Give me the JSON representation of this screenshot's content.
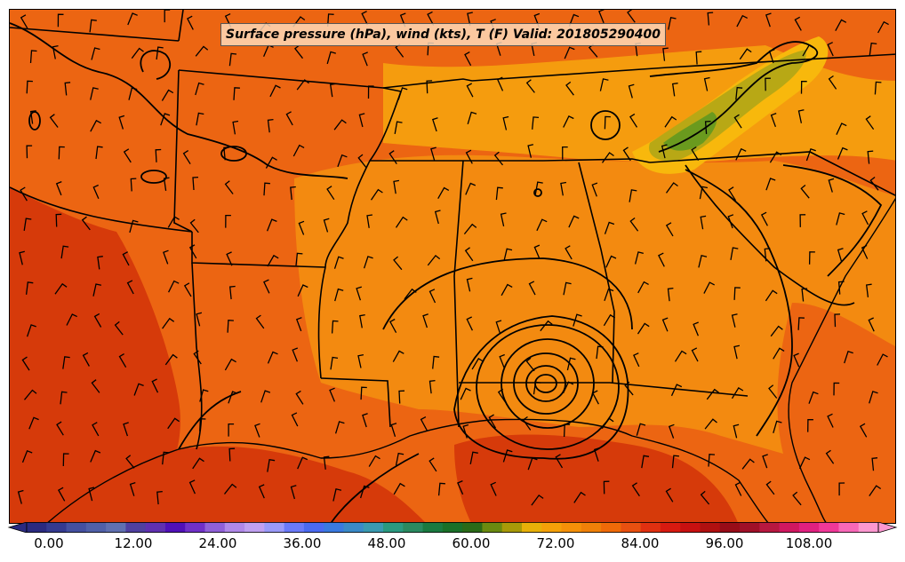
{
  "map": {
    "title": "Surface pressure (hPa), wind (kts), T (F) Valid: 201805290400",
    "fill_colors": {
      "deep": "#d63a0a",
      "base": "#ec6512",
      "mid": "#f38a10",
      "warm": "#f59c0e",
      "high": "#f8b80c",
      "cool": "#b8a815",
      "green": "#6a9a1e"
    },
    "line_color": "#000000"
  },
  "colorbar": {
    "tick_labels": [
      "0.00",
      "12.00",
      "24.00",
      "36.00",
      "48.00",
      "60.00",
      "72.00",
      "84.00",
      "96.00",
      "108.00"
    ],
    "tick_values": [
      0,
      12,
      24,
      36,
      48,
      60,
      72,
      84,
      96,
      108
    ],
    "range": [
      0,
      120
    ],
    "extend": "both",
    "colors": [
      "#2a2a80",
      "#343a90",
      "#4450a0",
      "#5060a8",
      "#6070b0",
      "#5040a0",
      "#6030b0",
      "#5010b8",
      "#7030c8",
      "#9060d8",
      "#b088e8",
      "#c0a0f0",
      "#9a9af8",
      "#6a7af8",
      "#4a6af0",
      "#3a7ae0",
      "#3a8ac8",
      "#3a9ab0",
      "#2a9a80",
      "#2a8a60",
      "#1a7a40",
      "#1a7028",
      "#2a6a18",
      "#6a8a10",
      "#a89a08",
      "#e8b008",
      "#f5a008",
      "#f59008",
      "#f08008",
      "#f06a08",
      "#e85010",
      "#e03010",
      "#d81a10",
      "#c81010",
      "#b01010",
      "#980c18",
      "#a01028",
      "#b81840",
      "#d01860",
      "#e02080",
      "#f03898",
      "#f868b8",
      "#fc98d0"
    ]
  }
}
